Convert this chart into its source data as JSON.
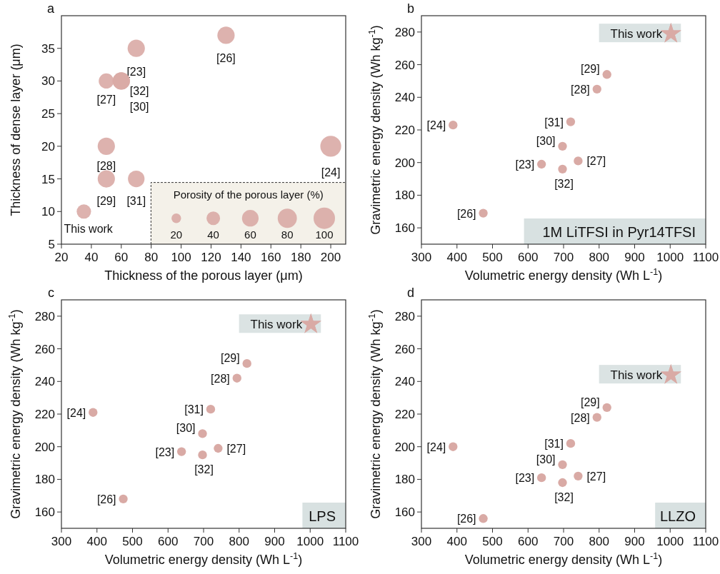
{
  "chart_data": [
    {
      "type": "bubble",
      "title": "a",
      "xlabel": "Thickness of the porous layer (μm)",
      "ylabel": "Thickness of dense layer (μm)",
      "xlim": [
        20,
        210
      ],
      "xticks": [
        20,
        40,
        60,
        80,
        100,
        120,
        140,
        160,
        180,
        200
      ],
      "ylim": [
        5,
        40
      ],
      "yticks": [
        5,
        10,
        15,
        20,
        25,
        30,
        35
      ],
      "legend_title": "Porosity of the porous layer (%)",
      "size_legend": [
        20,
        40,
        60,
        80,
        100
      ],
      "series": [
        {
          "color": "#d9aaa5",
          "x": [
            35,
            50,
            50,
            70,
            50,
            60,
            60,
            70,
            130,
            200
          ],
          "values": [
            10,
            20,
            15,
            15,
            30,
            30,
            30,
            35,
            37,
            20
          ],
          "sizes": [
            45,
            65,
            65,
            60,
            50,
            65,
            65,
            65,
            65,
            95
          ]
        }
      ],
      "annotations": [
        {
          "text": "This work",
          "x": 35,
          "y": 10
        },
        {
          "text": "[28]",
          "x": 50,
          "y": 20
        },
        {
          "text": "[29]",
          "x": 50,
          "y": 15
        },
        {
          "text": "[31]",
          "x": 70,
          "y": 15
        },
        {
          "text": "[27]",
          "x": 50,
          "y": 30
        },
        {
          "text": "[32]",
          "x": 60,
          "y": 30
        },
        {
          "text": "[30]",
          "x": 60,
          "y": 30
        },
        {
          "text": "[23]",
          "x": 70,
          "y": 35
        },
        {
          "text": "[26]",
          "x": 130,
          "y": 37
        },
        {
          "text": "[24]",
          "x": 200,
          "y": 20
        }
      ]
    },
    {
      "type": "scatter",
      "title": "b",
      "xlabel": "Volumetric energy density (Wh L$^{-1}$)",
      "ylabel": "Gravimetric energy density (Wh kg$^{-1}$)",
      "xlim": [
        300,
        1100
      ],
      "xticks": [
        300,
        400,
        500,
        600,
        700,
        800,
        900,
        1000,
        1100
      ],
      "ylim": [
        150,
        290
      ],
      "yticks": [
        160,
        180,
        200,
        220,
        240,
        260,
        280
      ],
      "marker": "circle",
      "series": [
        {
          "color": "#d9aaa5",
          "x": [
            389,
            474,
            638,
            697,
            697,
            720,
            741,
            794,
            822
          ],
          "values": [
            223,
            169,
            199,
            210,
            196,
            225,
            201,
            245,
            254
          ]
        },
        {
          "name": "This work",
          "marker": "star",
          "color": "#d9aaa5",
          "x": [
            1002
          ],
          "values": [
            279
          ]
        }
      ],
      "annotations": [
        {
          "text": "[24]",
          "x": 389,
          "y": 223
        },
        {
          "text": "[26]",
          "x": 474,
          "y": 169
        },
        {
          "text": "[23]",
          "x": 638,
          "y": 199
        },
        {
          "text": "[30]",
          "x": 697,
          "y": 210
        },
        {
          "text": "[32]",
          "x": 697,
          "y": 196
        },
        {
          "text": "[31]",
          "x": 720,
          "y": 225
        },
        {
          "text": "[27]",
          "x": 741,
          "y": 201
        },
        {
          "text": "[28]",
          "x": 794,
          "y": 245
        },
        {
          "text": "[29]",
          "x": 822,
          "y": 254
        },
        "1M LiTFSI in Pyr14TFSI"
      ]
    },
    {
      "type": "scatter",
      "title": "c",
      "xlabel": "Volumetric energy density (Wh L$^{-1}$)",
      "ylabel": "Gravimetric energy density (Wh kg$^{-1}$)",
      "xlim": [
        300,
        1100
      ],
      "xticks": [
        300,
        400,
        500,
        600,
        700,
        800,
        900,
        1000,
        1100
      ],
      "ylim": [
        150,
        290
      ],
      "yticks": [
        160,
        180,
        200,
        220,
        240,
        260,
        280
      ],
      "marker": "circle",
      "series": [
        {
          "color": "#d9aaa5",
          "x": [
            389,
            474,
            638,
            697,
            697,
            720,
            741,
            794,
            822
          ],
          "values": [
            221,
            168,
            197,
            208,
            195,
            223,
            199,
            242,
            251
          ]
        },
        {
          "name": "This work",
          "marker": "star",
          "color": "#d9aaa5",
          "x": [
            1002
          ],
          "values": [
            275
          ]
        }
      ],
      "annotations": [
        {
          "text": "[24]",
          "x": 389,
          "y": 221
        },
        {
          "text": "[26]",
          "x": 474,
          "y": 168
        },
        {
          "text": "[23]",
          "x": 638,
          "y": 197
        },
        {
          "text": "[30]",
          "x": 697,
          "y": 208
        },
        {
          "text": "[32]",
          "x": 697,
          "y": 195
        },
        {
          "text": "[31]",
          "x": 720,
          "y": 223
        },
        {
          "text": "[27]",
          "x": 741,
          "y": 199
        },
        {
          "text": "[28]",
          "x": 794,
          "y": 242
        },
        {
          "text": "[29]",
          "x": 822,
          "y": 251
        },
        "LPS"
      ]
    },
    {
      "type": "scatter",
      "title": "d",
      "xlabel": "Volumetric energy density (Wh L$^{-1}$)",
      "ylabel": "Gravimetric energy density (Wh kg$^{-1}$)",
      "xlim": [
        300,
        1100
      ],
      "xticks": [
        300,
        400,
        500,
        600,
        700,
        800,
        900,
        1000,
        1100
      ],
      "ylim": [
        150,
        290
      ],
      "yticks": [
        160,
        180,
        200,
        220,
        240,
        260,
        280
      ],
      "marker": "circle",
      "series": [
        {
          "color": "#d9aaa5",
          "x": [
            389,
            474,
            638,
            697,
            697,
            720,
            741,
            794,
            822
          ],
          "values": [
            200,
            156,
            181,
            189,
            178,
            202,
            182,
            218,
            224
          ]
        },
        {
          "name": "This work",
          "marker": "star",
          "color": "#d9aaa5",
          "x": [
            1002
          ],
          "values": [
            244
          ]
        }
      ],
      "annotations": [
        {
          "text": "[24]",
          "x": 389,
          "y": 200
        },
        {
          "text": "[26]",
          "x": 474,
          "y": 156
        },
        {
          "text": "[23]",
          "x": 638,
          "y": 181
        },
        {
          "text": "[30]",
          "x": 697,
          "y": 189
        },
        {
          "text": "[32]",
          "x": 697,
          "y": 178
        },
        {
          "text": "[31]",
          "x": 720,
          "y": 202
        },
        {
          "text": "[27]",
          "x": 741,
          "y": 182
        },
        {
          "text": "[28]",
          "x": 794,
          "y": 218
        },
        {
          "text": "[29]",
          "x": 822,
          "y": 224
        },
        "LLZO"
      ]
    }
  ]
}
